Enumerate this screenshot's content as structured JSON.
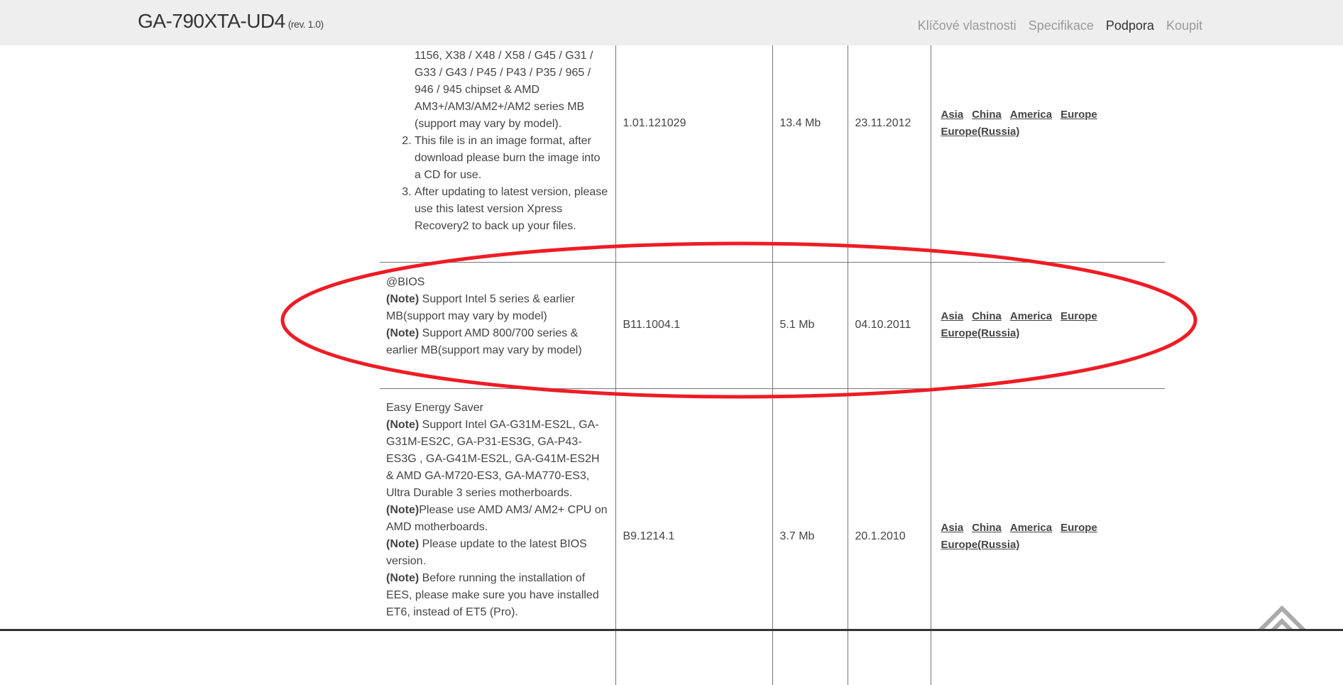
{
  "header": {
    "title": "GA-790XTA-UD4",
    "revision": "(rev. 1.0)",
    "nav": [
      {
        "label": "Klíčové vlastnosti",
        "active": false
      },
      {
        "label": "Specifikace",
        "active": false
      },
      {
        "label": "Podpora",
        "active": true
      },
      {
        "label": "Koupit",
        "active": false
      }
    ]
  },
  "rows": [
    {
      "description_lines": [
        "1156, X38 / X48 / X58 / G45 / G31 / G33 / G43 / P45 / P43 / P35 / 965 / 946 / 945 chipset & AMD AM3+/AM3/AM2+/AM2 series MB (support may vary by model).",
        "This file is in an image format, after download please burn the image into a CD for use.",
        "After updating to latest version, please use this latest version Xpress Recovery2 to back up your files."
      ],
      "version": "1.01.121029",
      "size": "13.4 Mb",
      "date": "23.11.2012",
      "links": [
        "Asia",
        "China",
        "America",
        "Europe",
        "Europe(Russia)"
      ]
    },
    {
      "title": "@BIOS",
      "notes": [
        {
          "label": "(Note)",
          "text": " Support Intel 5 series & earlier MB(support may vary by model)"
        },
        {
          "label": "(Note)",
          "text": " Support AMD 800/700 series & earlier MB(support may vary by model)"
        }
      ],
      "version": "B11.1004.1",
      "size": "5.1 Mb",
      "date": "04.10.2011",
      "links": [
        "Asia",
        "China",
        "America",
        "Europe",
        "Europe(Russia)"
      ],
      "highlighted": true,
      "highlight_color": "#ee1c25"
    },
    {
      "title": "Easy Energy Saver",
      "notes": [
        {
          "label": "(Note)",
          "text": " Support Intel GA-G31M-ES2L, GA-G31M-ES2C, GA-P31-ES3G, GA-P43-ES3G , GA-G41M-ES2L, GA-G41M-ES2H & AMD GA-M720-ES3, GA-MA770-ES3, Ultra Durable 3 series motherboards."
        },
        {
          "label": "(Note)",
          "text": "Please use AMD AM3/ AM2+ CPU on AMD motherboards."
        },
        {
          "label": "(Note)",
          "text": " Please update to the latest BIOS version."
        },
        {
          "label": "(Note)",
          "text": " Before running the installation of EES, please make sure you have installed ET6, instead of ET5 (Pro)."
        }
      ],
      "version": "B9.1214.1",
      "size": "3.7 Mb",
      "date": "20.1.2010",
      "links": [
        "Asia",
        "China",
        "America",
        "Europe",
        "Europe(Russia)"
      ]
    }
  ],
  "scroll_top_icon": "double-chevron-up-icon"
}
